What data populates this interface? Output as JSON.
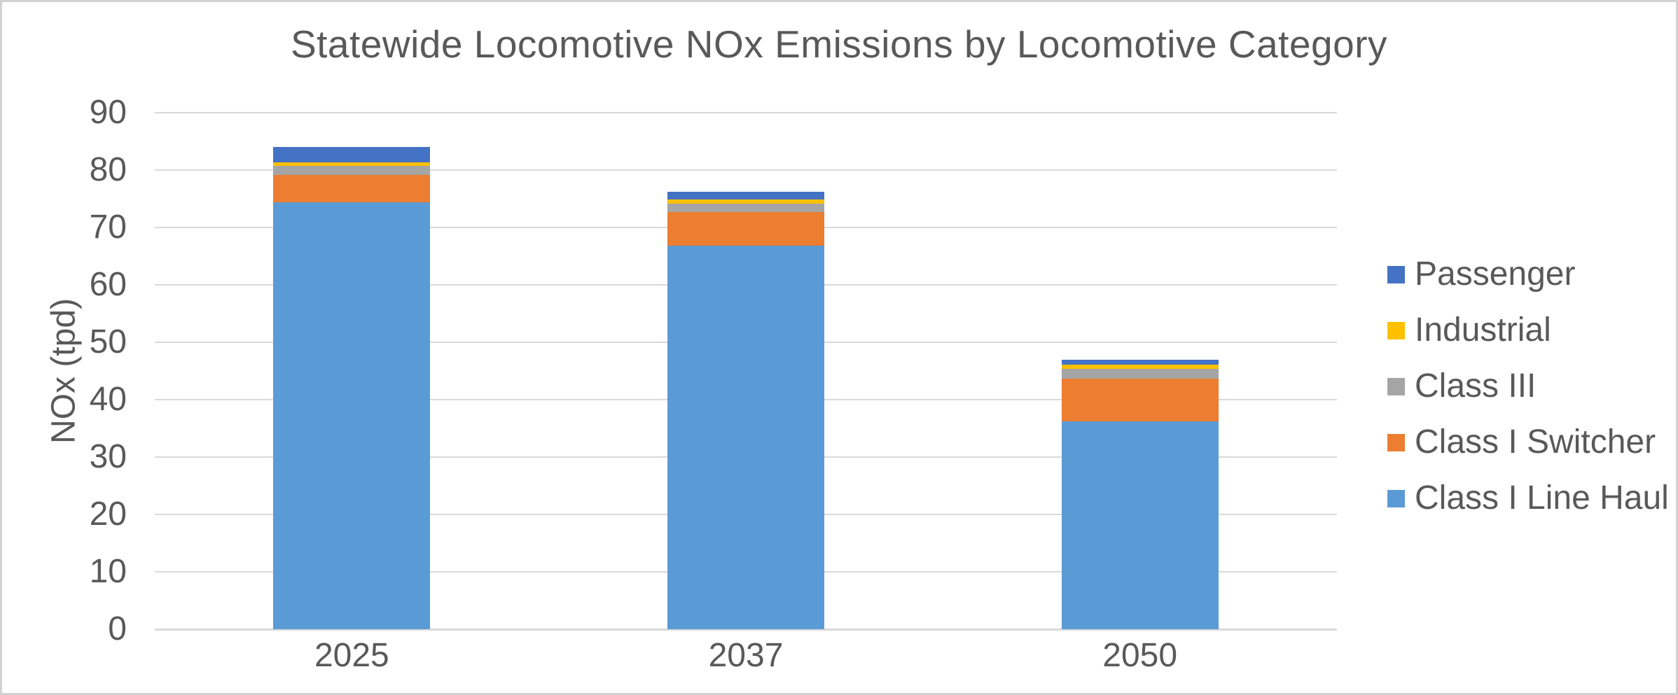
{
  "page": {
    "background": "#ffffff",
    "border_color": "#d2d2d2",
    "text_color": "#595959",
    "gridline_color": "#d9d9d9"
  },
  "chart_data": {
    "type": "bar",
    "stacked": true,
    "title": "Statewide Locomotive NOx Emissions by Locomotive Category",
    "xlabel": "",
    "ylabel": "NOx (tpd)",
    "categories": [
      "2025",
      "2037",
      "2050"
    ],
    "series": [
      {
        "name": "Class I Line Haul",
        "color": "#5B9BD5",
        "values": [
          74.4,
          66.8,
          36.2
        ]
      },
      {
        "name": "Class I Switcher",
        "color": "#ED7D31",
        "values": [
          4.7,
          5.9,
          7.5
        ]
      },
      {
        "name": "Class III",
        "color": "#A5A5A5",
        "values": [
          1.6,
          1.5,
          1.7
        ]
      },
      {
        "name": "Industrial",
        "color": "#FFC000",
        "values": [
          0.7,
          0.7,
          0.7
        ]
      },
      {
        "name": "Passenger",
        "color": "#4472C4",
        "values": [
          2.6,
          1.3,
          0.9
        ]
      }
    ],
    "legend_order": [
      "Passenger",
      "Industrial",
      "Class III",
      "Class I Switcher",
      "Class I Line Haul"
    ],
    "legend_position": "right",
    "ylim": [
      0,
      90
    ],
    "ytick_interval": 10,
    "yticks": [
      "0",
      "10",
      "20",
      "30",
      "40",
      "50",
      "60",
      "70",
      "80",
      "90"
    ],
    "grid": "horizontal"
  }
}
